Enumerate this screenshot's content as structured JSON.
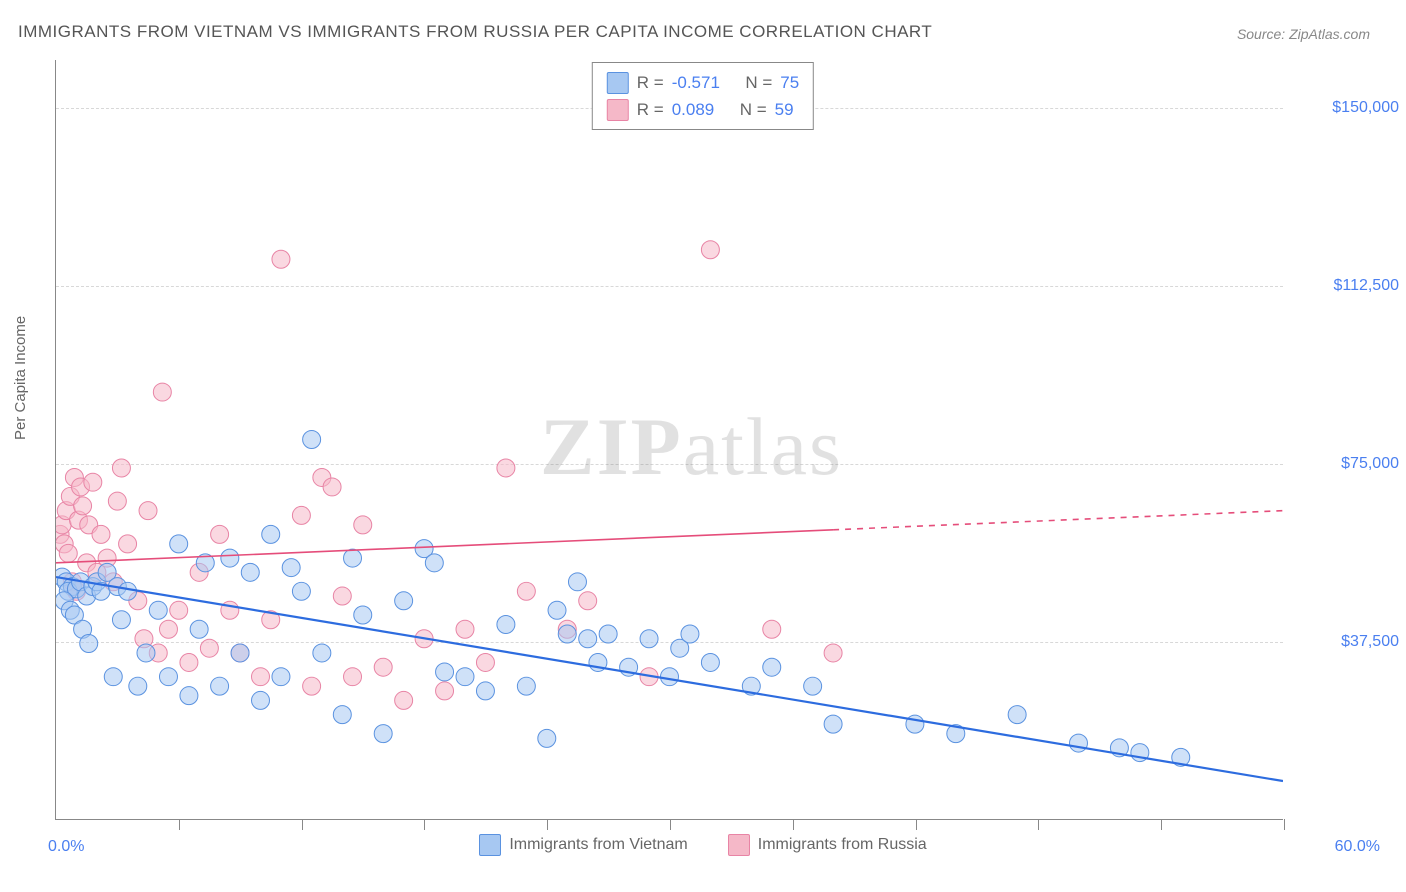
{
  "title": "IMMIGRANTS FROM VIETNAM VS IMMIGRANTS FROM RUSSIA PER CAPITA INCOME CORRELATION CHART",
  "source": "Source: ZipAtlas.com",
  "y_axis_title": "Per Capita Income",
  "watermark_zip": "ZIP",
  "watermark_atlas": "atlas",
  "x_min_label": "0.0%",
  "x_max_label": "60.0%",
  "chart": {
    "type": "scatter",
    "xlim": [
      0,
      60
    ],
    "ylim": [
      0,
      160000
    ],
    "ytick_step": 37500,
    "ytick_labels": [
      "$37,500",
      "$75,000",
      "$112,500",
      "$150,000"
    ],
    "ytick_values": [
      37500,
      75000,
      112500,
      150000
    ],
    "xtick_step": 6,
    "xtick_count": 10,
    "grid_color": "#d8d8d8",
    "axis_color": "#888888",
    "background_color": "#ffffff",
    "ylabel_color": "#4a7ff0",
    "ylabel_fontsize": 16,
    "title_fontsize": 17,
    "marker_radius": 9,
    "marker_opacity": 0.55,
    "series": [
      {
        "name": "Immigrants from Vietnam",
        "color_fill": "#a7c8f2",
        "color_stroke": "#5a92e0",
        "R": "-0.571",
        "N": "75",
        "trend": {
          "x1": 0,
          "y1": 51000,
          "x2": 60,
          "y2": 8000,
          "solid_until_x": 60,
          "color": "#2d6cdf",
          "width": 2.2
        },
        "points": [
          [
            0.3,
            51000
          ],
          [
            0.5,
            50000
          ],
          [
            0.8,
            49000
          ],
          [
            0.6,
            48000
          ],
          [
            1.0,
            48500
          ],
          [
            1.2,
            50000
          ],
          [
            0.4,
            46000
          ],
          [
            1.5,
            47000
          ],
          [
            1.8,
            49000
          ],
          [
            2.0,
            50000
          ],
          [
            0.7,
            44000
          ],
          [
            0.9,
            43000
          ],
          [
            2.2,
            48000
          ],
          [
            2.5,
            52000
          ],
          [
            1.3,
            40000
          ],
          [
            3.0,
            49000
          ],
          [
            1.6,
            37000
          ],
          [
            2.8,
            30000
          ],
          [
            3.2,
            42000
          ],
          [
            3.5,
            48000
          ],
          [
            4.0,
            28000
          ],
          [
            4.4,
            35000
          ],
          [
            5.0,
            44000
          ],
          [
            5.5,
            30000
          ],
          [
            6.0,
            58000
          ],
          [
            6.5,
            26000
          ],
          [
            7.0,
            40000
          ],
          [
            7.3,
            54000
          ],
          [
            8.0,
            28000
          ],
          [
            8.5,
            55000
          ],
          [
            9.0,
            35000
          ],
          [
            9.5,
            52000
          ],
          [
            10.0,
            25000
          ],
          [
            10.5,
            60000
          ],
          [
            11.0,
            30000
          ],
          [
            11.5,
            53000
          ],
          [
            12.0,
            48000
          ],
          [
            12.5,
            80000
          ],
          [
            13.0,
            35000
          ],
          [
            14.0,
            22000
          ],
          [
            14.5,
            55000
          ],
          [
            15.0,
            43000
          ],
          [
            16.0,
            18000
          ],
          [
            17.0,
            46000
          ],
          [
            18.0,
            57000
          ],
          [
            18.5,
            54000
          ],
          [
            19.0,
            31000
          ],
          [
            20.0,
            30000
          ],
          [
            21.0,
            27000
          ],
          [
            22.0,
            41000
          ],
          [
            23.0,
            28000
          ],
          [
            24.0,
            17000
          ],
          [
            24.5,
            44000
          ],
          [
            25.0,
            39000
          ],
          [
            25.5,
            50000
          ],
          [
            26.0,
            38000
          ],
          [
            26.5,
            33000
          ],
          [
            27.0,
            39000
          ],
          [
            28.0,
            32000
          ],
          [
            29.0,
            38000
          ],
          [
            30.0,
            30000
          ],
          [
            30.5,
            36000
          ],
          [
            31.0,
            39000
          ],
          [
            32.0,
            33000
          ],
          [
            34.0,
            28000
          ],
          [
            35.0,
            32000
          ],
          [
            37.0,
            28000
          ],
          [
            38.0,
            20000
          ],
          [
            42.0,
            20000
          ],
          [
            44.0,
            18000
          ],
          [
            47.0,
            22000
          ],
          [
            50.0,
            16000
          ],
          [
            52.0,
            15000
          ],
          [
            53.0,
            14000
          ],
          [
            55.0,
            13000
          ]
        ]
      },
      {
        "name": "Immigrants from Russia",
        "color_fill": "#f5b8c8",
        "color_stroke": "#e884a5",
        "R": "0.089",
        "N": "59",
        "trend": {
          "x1": 0,
          "y1": 54000,
          "x2": 60,
          "y2": 65000,
          "solid_until_x": 38,
          "color": "#e54d7a",
          "width": 1.6
        },
        "points": [
          [
            0.2,
            60000
          ],
          [
            0.3,
            62000
          ],
          [
            0.4,
            58000
          ],
          [
            0.5,
            65000
          ],
          [
            0.6,
            56000
          ],
          [
            0.7,
            68000
          ],
          [
            0.8,
            50000
          ],
          [
            0.9,
            72000
          ],
          [
            1.0,
            48000
          ],
          [
            1.1,
            63000
          ],
          [
            1.2,
            70000
          ],
          [
            1.3,
            66000
          ],
          [
            1.5,
            54000
          ],
          [
            1.6,
            62000
          ],
          [
            1.8,
            71000
          ],
          [
            2.0,
            52000
          ],
          [
            2.2,
            60000
          ],
          [
            2.5,
            55000
          ],
          [
            2.8,
            50000
          ],
          [
            3.0,
            67000
          ],
          [
            3.2,
            74000
          ],
          [
            3.5,
            58000
          ],
          [
            4.0,
            46000
          ],
          [
            4.3,
            38000
          ],
          [
            4.5,
            65000
          ],
          [
            5.0,
            35000
          ],
          [
            5.2,
            90000
          ],
          [
            5.5,
            40000
          ],
          [
            6.0,
            44000
          ],
          [
            6.5,
            33000
          ],
          [
            7.0,
            52000
          ],
          [
            7.5,
            36000
          ],
          [
            8.0,
            60000
          ],
          [
            8.5,
            44000
          ],
          [
            9.0,
            35000
          ],
          [
            10.0,
            30000
          ],
          [
            10.5,
            42000
          ],
          [
            11.0,
            118000
          ],
          [
            12.0,
            64000
          ],
          [
            12.5,
            28000
          ],
          [
            13.0,
            72000
          ],
          [
            13.5,
            70000
          ],
          [
            14.0,
            47000
          ],
          [
            14.5,
            30000
          ],
          [
            15.0,
            62000
          ],
          [
            16.0,
            32000
          ],
          [
            17.0,
            25000
          ],
          [
            18.0,
            38000
          ],
          [
            19.0,
            27000
          ],
          [
            20.0,
            40000
          ],
          [
            21.0,
            33000
          ],
          [
            22.0,
            74000
          ],
          [
            23.0,
            48000
          ],
          [
            25.0,
            40000
          ],
          [
            26.0,
            46000
          ],
          [
            29.0,
            30000
          ],
          [
            32.0,
            120000
          ],
          [
            35.0,
            40000
          ],
          [
            38.0,
            35000
          ]
        ]
      }
    ]
  },
  "legend_top": {
    "r_label": "R = ",
    "n_label": "N = "
  },
  "legend_bottom_labels": [
    "Immigrants from Vietnam",
    "Immigrants from Russia"
  ]
}
